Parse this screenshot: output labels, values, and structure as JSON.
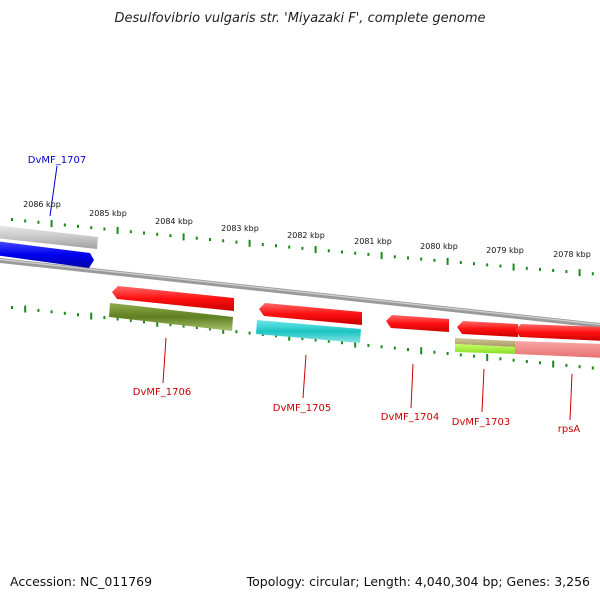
{
  "title": "Desulfovibrio vulgaris str. 'Miyazaki F', complete genome",
  "footer": {
    "accession": "Accession: NC_011769",
    "summary": "Topology: circular; Length: 4,040,304 bp; Genes: 3,256"
  },
  "scale_ticks": [
    {
      "label": "2086 kbp"
    },
    {
      "label": "2085 kbp"
    },
    {
      "label": "2084 kbp"
    },
    {
      "label": "2083 kbp"
    },
    {
      "label": "2082 kbp"
    },
    {
      "label": "2081 kbp"
    },
    {
      "label": "2080 kbp"
    },
    {
      "label": "2079 kbp"
    },
    {
      "label": "2078 kbp"
    }
  ],
  "genes": [
    {
      "label": "DvMF_1707",
      "color": "#0000cc"
    },
    {
      "label": "DvMF_1706",
      "color": "#cc0000"
    },
    {
      "label": "DvMF_1705",
      "color": "#cc0000"
    },
    {
      "label": "DvMF_1704",
      "color": "#cc0000"
    },
    {
      "label": "DvMF_1703",
      "color": "#cc0000"
    },
    {
      "label": "rpsA",
      "color": "#cc0000"
    }
  ],
  "colors": {
    "tick_green": "#1a8a1a",
    "gene_red": "#ff1a1a",
    "gene_blue": "#0000ee",
    "backbone_grey": "#888888",
    "cog_olive": "#6b8e23",
    "cog_cyan": "#22c8c8",
    "cog_tan": "#b9ad78",
    "cog_lime": "#99ee33",
    "cog_pink": "#f08080",
    "cog_lightgrey": "#c8c8c8"
  }
}
